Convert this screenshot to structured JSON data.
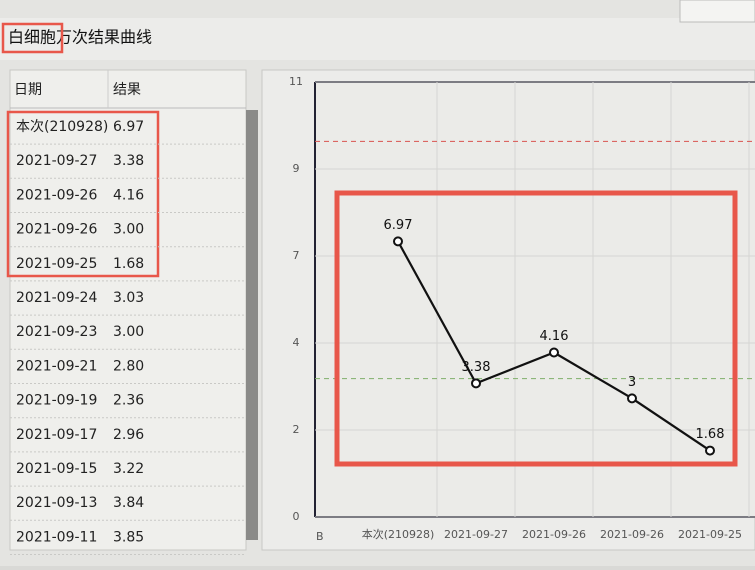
{
  "title": "白细胞万次结果曲线",
  "table": {
    "columns": [
      "日期",
      "结果"
    ],
    "rows": [
      [
        "本次(210928)",
        "6.97"
      ],
      [
        "2021-09-27",
        "3.38"
      ],
      [
        "2021-09-26",
        "4.16"
      ],
      [
        "2021-09-26",
        "3.00"
      ],
      [
        "2021-09-25",
        "1.68"
      ],
      [
        "2021-09-24",
        "3.03"
      ],
      [
        "2021-09-23",
        "3.00"
      ],
      [
        "2021-09-21",
        "2.80"
      ],
      [
        "2021-09-19",
        "2.36"
      ],
      [
        "2021-09-17",
        "2.96"
      ],
      [
        "2021-09-15",
        "3.22"
      ],
      [
        "2021-09-13",
        "3.84"
      ],
      [
        "2021-09-11",
        "3.85"
      ]
    ]
  },
  "chart_data": {
    "type": "line",
    "categories": [
      "本次(210928)",
      "2021-09-27",
      "2021-09-26",
      "2021-09-26",
      "2021-09-25"
    ],
    "values": [
      6.97,
      3.38,
      4.16,
      3,
      1.68
    ],
    "color": "#111111",
    "ylim": [
      0,
      11
    ],
    "yticks": [
      0,
      {
        "value": 2.2,
        "label": "2"
      },
      {
        "value": 4.4,
        "label": "4"
      },
      {
        "value": 6.6,
        "label": "7"
      },
      {
        "value": 8.8,
        "label": "9"
      },
      11
    ],
    "grid": true,
    "x_corner_label": "B",
    "reference_lines": [
      {
        "value": 9.5,
        "color": "#d9534f"
      },
      {
        "value": 3.5,
        "color": "#7fae6a"
      }
    ]
  }
}
